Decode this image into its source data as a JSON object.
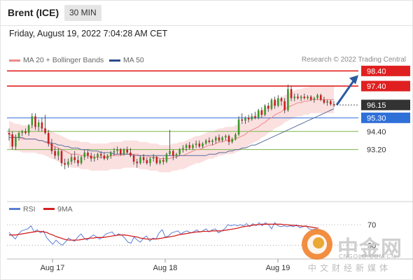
{
  "header": {
    "instrument": "Brent (ICE)",
    "timeframe": "30 MIN"
  },
  "datetime": "Friday, August 19, 2022 7:04:28 AM CET",
  "legend": {
    "ma20": {
      "label": "MA 20 + Bollinger Bands",
      "color": "#ee8888"
    },
    "ma50": {
      "label": "MA 50",
      "color": "#2b4a8c"
    }
  },
  "credit": "Research © 2022 Trading Central",
  "watermark": {
    "text": "中金网",
    "url": "CNGOLD.COM.CN",
    "sub": "中文财经新媒体"
  },
  "chart_data": [
    {
      "type": "candlestick",
      "ylim": [
        91.9,
        99.2
      ],
      "x_ticks": [
        "Aug 17",
        "Aug 18",
        "Aug 19"
      ],
      "candles": [
        [
          94.3,
          94.6,
          93.8,
          94.2
        ],
        [
          94.2,
          94.4,
          93.2,
          93.4
        ],
        [
          93.4,
          94.2,
          93.2,
          94.0
        ],
        [
          94.0,
          94.4,
          93.8,
          94.3
        ],
        [
          94.3,
          94.5,
          94.1,
          94.4
        ],
        [
          94.4,
          94.6,
          94.2,
          94.3
        ],
        [
          94.3,
          94.9,
          94.1,
          94.8
        ],
        [
          94.8,
          95.6,
          94.6,
          95.4
        ],
        [
          95.4,
          95.6,
          94.5,
          94.7
        ],
        [
          94.7,
          95.2,
          94.4,
          95.0
        ],
        [
          95.0,
          95.3,
          94.4,
          94.6
        ],
        [
          94.6,
          95.5,
          94.2,
          94.3
        ],
        [
          94.3,
          94.5,
          93.4,
          93.6
        ],
        [
          93.6,
          93.9,
          92.9,
          93.1
        ],
        [
          93.1,
          93.4,
          92.6,
          92.8
        ],
        [
          92.8,
          93.3,
          92.5,
          93.1
        ],
        [
          93.1,
          93.2,
          92.1,
          92.3
        ],
        [
          92.3,
          92.6,
          91.9,
          92.2
        ],
        [
          92.2,
          92.6,
          92.0,
          92.4
        ],
        [
          92.4,
          92.9,
          92.2,
          92.7
        ],
        [
          92.7,
          93.1,
          92.3,
          92.5
        ],
        [
          92.5,
          92.8,
          92.1,
          92.3
        ],
        [
          92.3,
          92.8,
          92.2,
          92.7
        ],
        [
          92.7,
          93.2,
          92.5,
          93.0
        ],
        [
          93.0,
          93.2,
          92.6,
          92.8
        ],
        [
          92.8,
          93.0,
          92.4,
          92.6
        ],
        [
          92.6,
          92.9,
          92.4,
          92.7
        ],
        [
          92.7,
          93.0,
          92.5,
          92.9
        ],
        [
          92.9,
          93.1,
          92.6,
          92.8
        ],
        [
          92.8,
          93.0,
          92.5,
          92.6
        ],
        [
          92.6,
          92.9,
          92.5,
          92.8
        ],
        [
          92.8,
          93.1,
          92.6,
          93.0
        ],
        [
          93.0,
          93.3,
          92.8,
          93.1
        ],
        [
          93.1,
          93.4,
          92.9,
          93.2
        ],
        [
          93.2,
          93.3,
          92.8,
          92.9
        ],
        [
          92.9,
          93.3,
          92.8,
          93.2
        ],
        [
          93.2,
          93.4,
          92.9,
          93.0
        ],
        [
          93.0,
          93.3,
          92.7,
          92.8
        ],
        [
          92.8,
          92.9,
          92.2,
          92.4
        ],
        [
          92.4,
          92.6,
          92.0,
          92.3
        ],
        [
          92.3,
          92.8,
          92.2,
          92.7
        ],
        [
          92.7,
          92.9,
          92.3,
          92.5
        ],
        [
          92.5,
          92.7,
          92.2,
          92.3
        ],
        [
          92.3,
          92.7,
          92.1,
          92.6
        ],
        [
          92.6,
          92.9,
          92.4,
          92.7
        ],
        [
          92.7,
          92.8,
          92.2,
          92.3
        ],
        [
          92.3,
          92.6,
          92.2,
          92.5
        ],
        [
          92.5,
          92.7,
          92.2,
          92.4
        ],
        [
          92.4,
          93.0,
          92.3,
          92.9
        ],
        [
          92.9,
          94.5,
          92.8,
          93.1
        ],
        [
          93.1,
          93.2,
          92.5,
          92.8
        ],
        [
          92.8,
          93.0,
          92.6,
          92.9
        ],
        [
          92.9,
          93.3,
          92.8,
          93.2
        ],
        [
          93.2,
          93.5,
          93.0,
          93.3
        ],
        [
          93.3,
          93.6,
          93.1,
          93.5
        ],
        [
          93.5,
          93.7,
          93.2,
          93.3
        ],
        [
          93.3,
          93.6,
          93.2,
          93.5
        ],
        [
          93.5,
          93.8,
          93.3,
          93.6
        ],
        [
          93.6,
          93.8,
          93.3,
          93.4
        ],
        [
          93.4,
          93.7,
          93.3,
          93.6
        ],
        [
          93.6,
          93.9,
          93.5,
          93.8
        ],
        [
          93.8,
          94.0,
          93.6,
          93.7
        ],
        [
          93.7,
          93.9,
          93.5,
          93.8
        ],
        [
          93.8,
          94.1,
          93.6,
          94.0
        ],
        [
          94.0,
          94.2,
          93.7,
          93.8
        ],
        [
          93.8,
          94.1,
          93.7,
          94.0
        ],
        [
          94.0,
          94.2,
          93.8,
          94.1
        ],
        [
          94.1,
          94.2,
          93.5,
          93.7
        ],
        [
          93.7,
          94.0,
          93.6,
          93.9
        ],
        [
          93.9,
          94.3,
          93.8,
          94.2
        ],
        [
          94.2,
          95.4,
          94.1,
          95.2
        ],
        [
          95.2,
          95.6,
          94.9,
          95.1
        ],
        [
          95.1,
          95.4,
          94.9,
          95.3
        ],
        [
          95.3,
          95.5,
          95.0,
          95.2
        ],
        [
          95.2,
          95.6,
          95.1,
          95.4
        ],
        [
          95.4,
          95.7,
          95.2,
          95.3
        ],
        [
          95.3,
          95.9,
          95.2,
          95.8
        ],
        [
          95.8,
          96.0,
          95.3,
          95.5
        ],
        [
          95.5,
          96.2,
          95.4,
          96.1
        ],
        [
          96.1,
          96.3,
          95.7,
          95.9
        ],
        [
          95.9,
          96.6,
          95.8,
          96.5
        ],
        [
          96.5,
          96.7,
          95.9,
          96.1
        ],
        [
          96.1,
          96.8,
          96.0,
          96.6
        ],
        [
          96.6,
          96.7,
          96.1,
          96.4
        ],
        [
          96.4,
          96.6,
          95.6,
          95.8
        ],
        [
          95.8,
          97.5,
          95.7,
          97.2
        ],
        [
          97.2,
          97.4,
          96.4,
          96.6
        ],
        [
          96.6,
          96.9,
          96.4,
          96.7
        ],
        [
          96.7,
          96.9,
          96.5,
          96.6
        ],
        [
          96.6,
          96.8,
          96.4,
          96.7
        ],
        [
          96.7,
          96.9,
          96.5,
          96.6
        ],
        [
          96.6,
          96.8,
          96.5,
          96.7
        ],
        [
          96.7,
          96.8,
          96.4,
          96.5
        ],
        [
          96.5,
          96.7,
          96.3,
          96.6
        ],
        [
          96.6,
          96.9,
          96.5,
          96.8
        ],
        [
          96.8,
          96.9,
          96.4,
          96.5
        ],
        [
          96.5,
          96.7,
          96.2,
          96.3
        ],
        [
          96.3,
          96.5,
          96.1,
          96.4
        ],
        [
          96.4,
          96.5,
          96.1,
          96.2
        ],
        [
          96.2,
          96.4,
          96.0,
          96.15
        ]
      ],
      "ma20": [
        94.2,
        94.1,
        94.0,
        94.0,
        93.9,
        93.9,
        93.9,
        93.9,
        93.9,
        93.8,
        93.8,
        93.7,
        93.6,
        93.5,
        93.4,
        93.3,
        93.2,
        93.1,
        93.0,
        92.9,
        92.9,
        92.9,
        92.8,
        92.8,
        92.8,
        92.7,
        92.7,
        92.7,
        92.7,
        92.7,
        92.7,
        92.8,
        92.8,
        92.8,
        92.8,
        92.9,
        92.9,
        92.9,
        92.9,
        92.9,
        92.8,
        92.8,
        92.8,
        92.7,
        92.7,
        92.7,
        92.6,
        92.6,
        92.6,
        92.6,
        92.7,
        92.7,
        92.8,
        92.8,
        92.9,
        93.0,
        93.1,
        93.2,
        93.2,
        93.3,
        93.4,
        93.5,
        93.5,
        93.6,
        93.7,
        93.7,
        93.8,
        93.8,
        93.8,
        93.9,
        94.0,
        94.1,
        94.2,
        94.4,
        94.5,
        94.6,
        94.7,
        94.9,
        95.0,
        95.2,
        95.3,
        95.5,
        95.6,
        95.7,
        95.9,
        96.0,
        96.1,
        96.2,
        96.3,
        96.3,
        96.4,
        96.4,
        96.5,
        96.5,
        96.5,
        96.5,
        96.5,
        96.5,
        96.5,
        96.5
      ],
      "ma50": [
        94.0,
        94.0,
        94.0,
        94.0,
        94.0,
        93.9,
        93.9,
        93.9,
        93.9,
        93.8,
        93.8,
        93.7,
        93.7,
        93.6,
        93.6,
        93.5,
        93.5,
        93.4,
        93.4,
        93.3,
        93.3,
        93.3,
        93.2,
        93.2,
        93.2,
        93.1,
        93.1,
        93.1,
        93.0,
        93.0,
        93.0,
        93.0,
        92.9,
        92.9,
        92.9,
        92.9,
        92.9,
        92.9,
        92.8,
        92.8,
        92.8,
        92.8,
        92.8,
        92.8,
        92.8,
        92.8,
        92.8,
        92.8,
        92.8,
        92.8,
        92.8,
        92.8,
        92.8,
        92.8,
        92.8,
        92.8,
        92.8,
        92.8,
        92.8,
        92.8,
        92.8,
        92.9,
        92.9,
        92.9,
        93.0,
        93.0,
        93.0,
        93.1,
        93.1,
        93.2,
        93.2,
        93.3,
        93.3,
        93.4,
        93.5,
        93.5,
        93.6,
        93.7,
        93.8,
        93.9,
        94.0,
        94.1,
        94.2,
        94.3,
        94.4,
        94.5,
        94.6,
        94.7,
        94.8,
        94.9,
        95.0,
        95.1,
        95.2,
        95.3,
        95.4,
        95.5,
        95.6,
        95.7,
        95.8,
        95.9
      ],
      "band_width": 0.9,
      "levels": [
        {
          "value": "98.40",
          "role": "resistance",
          "color": "#e02020",
          "extended": true
        },
        {
          "value": "97.40",
          "role": "resistance",
          "color": "#e02020",
          "extended": true
        },
        {
          "value": "96.15",
          "role": "last",
          "color": "#333333",
          "extended": false
        },
        {
          "value": "95.30",
          "role": "pivot",
          "color": "#2f6fd8",
          "extended": true
        },
        {
          "value": "94.40",
          "role": "support",
          "color": "#7ab648",
          "extended": true
        },
        {
          "value": "93.20",
          "role": "support",
          "color": "#7ab648",
          "extended": true
        }
      ],
      "arrow": {
        "direction": "up",
        "from": 96.15,
        "to": 98.4
      }
    },
    {
      "type": "line",
      "series": [
        {
          "name": "RSI",
          "color": "#5b7fd6"
        },
        {
          "name": "9MA",
          "color": "#d42020"
        }
      ],
      "levels": [
        "70",
        "30"
      ],
      "rsi": [
        55,
        48,
        42,
        52,
        58,
        60,
        62,
        68,
        56,
        60,
        54,
        58,
        45,
        38,
        32,
        40,
        34,
        30,
        36,
        44,
        40,
        38,
        46,
        52,
        44,
        40,
        46,
        50,
        46,
        42,
        46,
        52,
        54,
        56,
        48,
        52,
        50,
        44,
        36,
        34,
        46,
        40,
        36,
        44,
        48,
        38,
        44,
        42,
        54,
        60,
        46,
        48,
        54,
        56,
        58,
        52,
        56,
        58,
        54,
        56,
        60,
        56,
        58,
        62,
        56,
        60,
        62,
        54,
        58,
        62,
        70,
        68,
        70,
        68,
        70,
        68,
        72,
        66,
        72,
        68,
        74,
        68,
        74,
        70,
        62,
        74,
        68,
        66,
        68,
        66,
        68,
        66,
        70,
        64,
        66,
        68,
        62,
        60,
        62,
        58
      ],
      "ma9": [
        50,
        50,
        50,
        51,
        52,
        53,
        54,
        55,
        56,
        57,
        57,
        56,
        55,
        52,
        50,
        47,
        45,
        43,
        41,
        40,
        40,
        40,
        40,
        41,
        42,
        43,
        44,
        44,
        45,
        45,
        45,
        46,
        47,
        48,
        49,
        50,
        50,
        50,
        49,
        48,
        47,
        46,
        44,
        43,
        42,
        42,
        42,
        42,
        43,
        44,
        45,
        46,
        47,
        48,
        50,
        51,
        52,
        53,
        54,
        55,
        56,
        56,
        57,
        57,
        57,
        58,
        58,
        58,
        58,
        59,
        60,
        61,
        62,
        63,
        65,
        66,
        67,
        68,
        69,
        70,
        70,
        71,
        71,
        71,
        71,
        71,
        71,
        71,
        70,
        70,
        69,
        69,
        68,
        68,
        67,
        67,
        66,
        65,
        64,
        63
      ]
    }
  ]
}
